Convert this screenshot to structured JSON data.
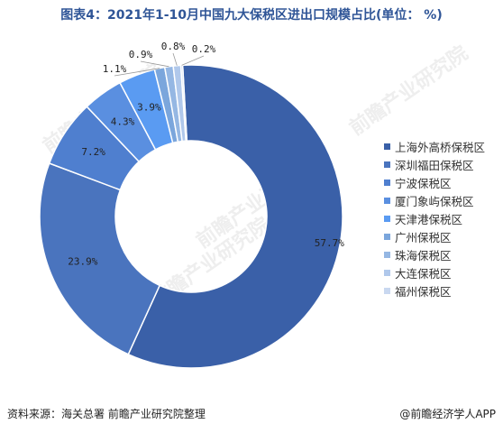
{
  "title": "图表4：2021年1-10月中国九大保税区进出口规模占比(单位： %)",
  "watermark_text": "前瞻产业研究院",
  "footer": {
    "source": "资料来源：海关总署 前瞻产业研究院整理",
    "brand": "@前瞻经济学人APP"
  },
  "chart_data": {
    "type": "pie",
    "style": "donut",
    "title": "图表4：2021年1-10月中国九大保税区进出口规模占比(单位： %)",
    "unit": "%",
    "legend_position": "right",
    "slices": [
      {
        "name": "上海外高桥保税区",
        "value": 57.7,
        "label": "57.7%",
        "color": "#3a60a8"
      },
      {
        "name": "深圳福田保税区",
        "value": 23.9,
        "label": "23.9%",
        "color": "#4a74be"
      },
      {
        "name": "宁波保税区",
        "value": 7.2,
        "label": "7.2%",
        "color": "#4f7fcf"
      },
      {
        "name": "厦门象屿保税区",
        "value": 4.3,
        "label": "4.3%",
        "color": "#5a8fe0"
      },
      {
        "name": "天津港保税区",
        "value": 3.9,
        "label": "3.9%",
        "color": "#5a9bf2"
      },
      {
        "name": "广州保税区",
        "value": 1.1,
        "label": "1.1%",
        "color": "#7ba6dc"
      },
      {
        "name": "珠海保税区",
        "value": 0.9,
        "label": "0.9%",
        "color": "#95b7e3"
      },
      {
        "name": "大连保税区",
        "value": 0.8,
        "label": "0.8%",
        "color": "#b0c8eb"
      },
      {
        "name": "福州保税区",
        "value": 0.2,
        "label": "0.2%",
        "color": "#c9d8f0"
      }
    ]
  }
}
